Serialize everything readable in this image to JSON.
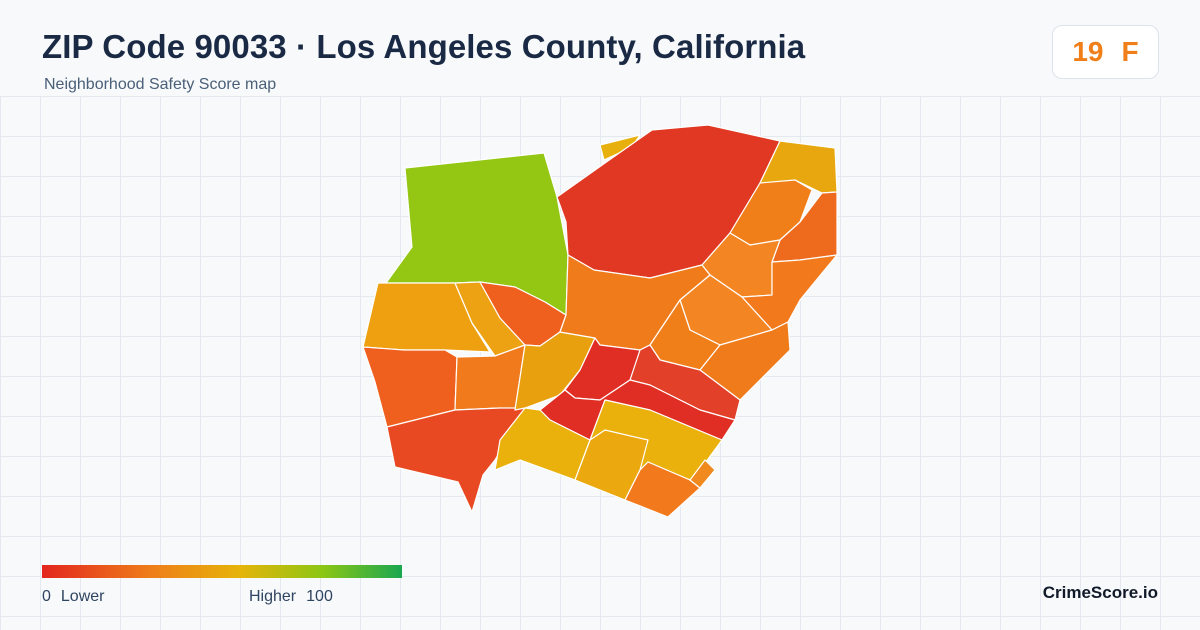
{
  "header": {
    "title": "ZIP Code 90033 · Los Angeles County, California",
    "subtitle": "Neighborhood Safety Score map"
  },
  "score": {
    "value": "19",
    "grade": "F",
    "color": "#f07f1a"
  },
  "legend": {
    "min_value": "0",
    "min_label": "Lower",
    "max_label": "Higher",
    "max_value": "100",
    "scale_colors": [
      "#e3261f",
      "#ef7d1a",
      "#e6b40a",
      "#8cc614",
      "#19a750"
    ]
  },
  "brand": "CrimeScore.io",
  "map": {
    "regions": [
      {
        "name": "northwest-green",
        "color": "#94c614"
      },
      {
        "name": "north-large-red",
        "color": "#e03822"
      },
      {
        "name": "northeast-corner",
        "color": "#e8a70e"
      },
      {
        "name": "northeast-orange",
        "color": "#f07f1a"
      },
      {
        "name": "west-gold",
        "color": "#eea010"
      },
      {
        "name": "west-orange",
        "color": "#ef5f1e"
      },
      {
        "name": "southwest-red",
        "color": "#e84922"
      },
      {
        "name": "center-gold",
        "color": "#e8a00f"
      },
      {
        "name": "center-red",
        "color": "#e12e24"
      },
      {
        "name": "center-orange",
        "color": "#f07b1a"
      },
      {
        "name": "south-gold",
        "color": "#eab00b"
      },
      {
        "name": "south-orange",
        "color": "#f27a1c"
      },
      {
        "name": "east-band",
        "color": "#f48523"
      }
    ]
  }
}
